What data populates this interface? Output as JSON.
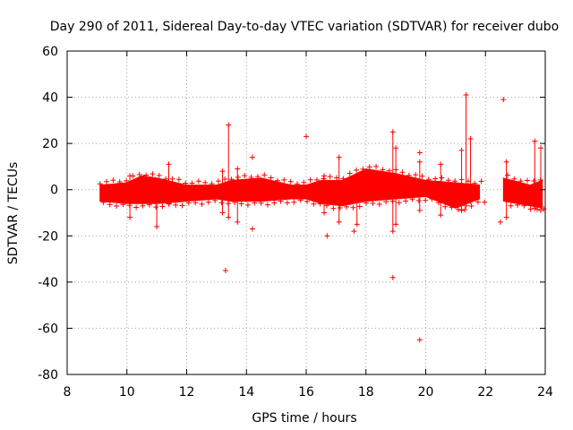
{
  "chart_data": {
    "type": "scatter",
    "title": "Day 290 of 2011, Sidereal Day-to-day VTEC variation (SDTVAR) for receiver dubo",
    "xlabel": "GPS time / hours",
    "ylabel": "SDTVAR / TECUs",
    "xlim": [
      8,
      24
    ],
    "ylim": [
      -80,
      60
    ],
    "xticks": [
      8,
      10,
      12,
      14,
      16,
      18,
      20,
      22,
      24
    ],
    "yticks": [
      -80,
      -60,
      -40,
      -20,
      0,
      20,
      40,
      60
    ],
    "grid": true,
    "marker": "+",
    "color": "#ff0000",
    "series": [
      {
        "name": "SDTVAR",
        "band": [
          {
            "x": 9.1,
            "lo": -5,
            "hi": 2
          },
          {
            "x": 10.0,
            "lo": -6,
            "hi": 3
          },
          {
            "x": 10.5,
            "lo": -6,
            "hi": 6
          },
          {
            "x": 11.0,
            "lo": -6,
            "hi": 5
          },
          {
            "x": 12.0,
            "lo": -5,
            "hi": 2
          },
          {
            "x": 13.0,
            "lo": -4,
            "hi": 2
          },
          {
            "x": 13.5,
            "lo": -5,
            "hi": 4
          },
          {
            "x": 14.5,
            "lo": -5,
            "hi": 5
          },
          {
            "x": 15.5,
            "lo": -4,
            "hi": 2
          },
          {
            "x": 16.0,
            "lo": -4,
            "hi": 2
          },
          {
            "x": 16.5,
            "lo": -6,
            "hi": 4
          },
          {
            "x": 17.2,
            "lo": -7,
            "hi": 4
          },
          {
            "x": 18.0,
            "lo": -5,
            "hi": 9
          },
          {
            "x": 19.0,
            "lo": -4,
            "hi": 7
          },
          {
            "x": 20.0,
            "lo": -3,
            "hi": 4
          },
          {
            "x": 21.0,
            "lo": -8,
            "hi": 3
          },
          {
            "x": 21.8,
            "lo": -4,
            "hi": 2
          },
          {
            "x": 22.6,
            "lo": -5,
            "hi": 5
          },
          {
            "x": 23.5,
            "lo": -7,
            "hi": 2
          },
          {
            "x": 23.9,
            "lo": -8,
            "hi": 4
          }
        ],
        "gaps": [
          [
            21.95,
            22.55
          ]
        ],
        "spikes": [
          {
            "x": 10.1,
            "lo": -12,
            "hi": 6
          },
          {
            "x": 11.0,
            "lo": -16,
            "hi": 3
          },
          {
            "x": 11.4,
            "lo": -6,
            "hi": 11
          },
          {
            "x": 13.2,
            "lo": -10,
            "hi": 8
          },
          {
            "x": 13.4,
            "lo": -12,
            "hi": 28
          },
          {
            "x": 13.7,
            "lo": -14,
            "hi": 9
          },
          {
            "x": 16.6,
            "lo": -10,
            "hi": 6
          },
          {
            "x": 17.1,
            "lo": -14,
            "hi": 14
          },
          {
            "x": 17.7,
            "lo": -15,
            "hi": 5
          },
          {
            "x": 18.9,
            "lo": -18,
            "hi": 25
          },
          {
            "x": 19.0,
            "lo": -15,
            "hi": 18
          },
          {
            "x": 19.8,
            "lo": -9,
            "hi": 12
          },
          {
            "x": 20.5,
            "lo": -11,
            "hi": 11
          },
          {
            "x": 21.2,
            "lo": -9,
            "hi": 17
          },
          {
            "x": 21.35,
            "lo": -7,
            "hi": 41
          },
          {
            "x": 21.5,
            "lo": -5,
            "hi": 22
          },
          {
            "x": 22.7,
            "lo": -12,
            "hi": 12
          },
          {
            "x": 23.65,
            "lo": -8,
            "hi": 21
          },
          {
            "x": 23.85,
            "lo": -9,
            "hi": 18
          }
        ],
        "outliers": [
          {
            "x": 13.3,
            "y": -35
          },
          {
            "x": 14.2,
            "y": 14
          },
          {
            "x": 14.2,
            "y": -17
          },
          {
            "x": 16.0,
            "y": 23
          },
          {
            "x": 16.7,
            "y": -20
          },
          {
            "x": 17.6,
            "y": -18
          },
          {
            "x": 18.9,
            "y": -38
          },
          {
            "x": 19.8,
            "y": -65
          },
          {
            "x": 19.8,
            "y": 16
          },
          {
            "x": 22.5,
            "y": -14
          },
          {
            "x": 22.6,
            "y": 39
          }
        ]
      }
    ]
  }
}
